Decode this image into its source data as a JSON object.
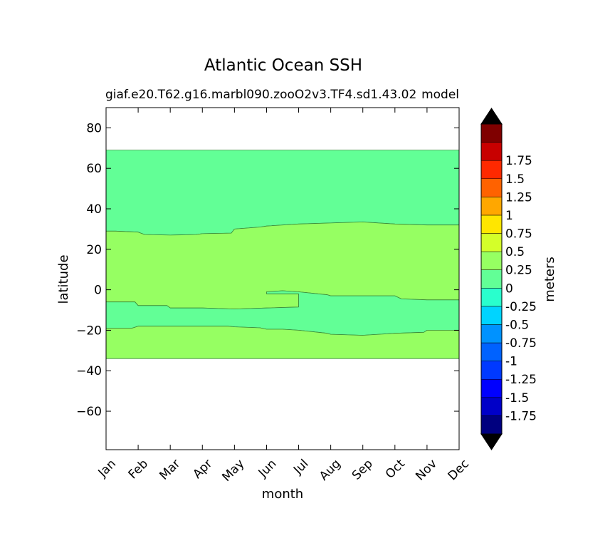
{
  "chart_data": {
    "type": "contourf",
    "title": "Atlantic Ocean SSH",
    "subtitle_left": "giaf.e20.T62.g16.marbl090.zooO2v3.TF4.sd1.43.02",
    "subtitle_right": "model",
    "xlabel": "month",
    "ylabel": "latitude",
    "x_ticks": [
      "Jan",
      "Feb",
      "Mar",
      "Apr",
      "May",
      "Jun",
      "Jul",
      "Aug",
      "Sep",
      "Oct",
      "Nov",
      "Dec"
    ],
    "y_ticks": [
      80,
      60,
      40,
      20,
      0,
      -20,
      -40,
      -60
    ],
    "xlim": [
      0,
      11
    ],
    "ylim": [
      -79,
      90
    ],
    "regions": [
      {
        "name": "north-band",
        "level": "-0.25 to 0",
        "color": "#62ff96",
        "boundary": [
          [
            0,
            69
          ],
          [
            11,
            69
          ],
          [
            11,
            32
          ],
          [
            10,
            32
          ],
          [
            9,
            32.5
          ],
          [
            8,
            33.5
          ],
          [
            7,
            33
          ],
          [
            6,
            32.5
          ],
          [
            5,
            31.5
          ],
          [
            4.8,
            31
          ],
          [
            4,
            30
          ],
          [
            3.9,
            28
          ],
          [
            3,
            27.7
          ],
          [
            2.8,
            27.3
          ],
          [
            2,
            27
          ],
          [
            1.2,
            27.3
          ],
          [
            1,
            28.5
          ],
          [
            0.3,
            29
          ],
          [
            0,
            29
          ]
        ]
      },
      {
        "name": "green-band",
        "level": "0 to 0.25",
        "color": "#96ff62",
        "boundary": [
          [
            0,
            29
          ],
          [
            0.3,
            29
          ],
          [
            1,
            28.5
          ],
          [
            1.2,
            27.3
          ],
          [
            2,
            27
          ],
          [
            2.8,
            27.3
          ],
          [
            3,
            27.7
          ],
          [
            3.9,
            28
          ],
          [
            4,
            30
          ],
          [
            4.8,
            31
          ],
          [
            5,
            31.5
          ],
          [
            6,
            32.5
          ],
          [
            7,
            33
          ],
          [
            8,
            33.5
          ],
          [
            9,
            32.5
          ],
          [
            10,
            32
          ],
          [
            11,
            32
          ],
          [
            11,
            -5
          ],
          [
            10,
            -5
          ],
          [
            9.2,
            -4.5
          ],
          [
            9,
            -3
          ],
          [
            7,
            -3
          ],
          [
            6.9,
            -2.5
          ],
          [
            6,
            -1
          ],
          [
            5.5,
            -0.5
          ],
          [
            5,
            -1
          ],
          [
            5,
            -2
          ],
          [
            6,
            -2
          ],
          [
            6,
            -8.5
          ],
          [
            5,
            -9
          ],
          [
            4,
            -9.5
          ],
          [
            3,
            -9
          ],
          [
            2,
            -9
          ],
          [
            1.9,
            -7.8
          ],
          [
            1,
            -7.8
          ],
          [
            0.9,
            -6
          ],
          [
            0,
            -6
          ]
        ]
      },
      {
        "name": "middle-band",
        "level": "-0.25 to 0",
        "color": "#62ff96",
        "boundary": [
          [
            0,
            -6
          ],
          [
            0.9,
            -6
          ],
          [
            1,
            -7.8
          ],
          [
            1.9,
            -7.8
          ],
          [
            2,
            -9
          ],
          [
            3,
            -9
          ],
          [
            4,
            -9.5
          ],
          [
            5,
            -9
          ],
          [
            6,
            -8.5
          ],
          [
            6,
            -2
          ],
          [
            5,
            -2
          ],
          [
            5,
            -1
          ],
          [
            5.5,
            -0.5
          ],
          [
            6,
            -1
          ],
          [
            6.9,
            -2.5
          ],
          [
            7,
            -3
          ],
          [
            9,
            -3
          ],
          [
            9.2,
            -4.5
          ],
          [
            10,
            -5
          ],
          [
            11,
            -5
          ],
          [
            11,
            -20
          ],
          [
            10,
            -20
          ],
          [
            9.9,
            -21
          ],
          [
            9,
            -21.5
          ],
          [
            8.5,
            -22
          ],
          [
            8,
            -22.5
          ],
          [
            7,
            -22
          ],
          [
            6.9,
            -21.5
          ],
          [
            6,
            -20
          ],
          [
            5.5,
            -19.5
          ],
          [
            5,
            -19.5
          ],
          [
            4.8,
            -18.8
          ],
          [
            4,
            -18.3
          ],
          [
            3.8,
            -18
          ],
          [
            3,
            -18
          ],
          [
            2,
            -18
          ],
          [
            1,
            -18
          ],
          [
            0.8,
            -19
          ],
          [
            0,
            -19
          ]
        ]
      },
      {
        "name": "south-band",
        "level": "0 to 0.25",
        "color": "#96ff62",
        "boundary": [
          [
            0,
            -19
          ],
          [
            0.8,
            -19
          ],
          [
            1,
            -18
          ],
          [
            2,
            -18
          ],
          [
            3,
            -18
          ],
          [
            3.8,
            -18
          ],
          [
            4,
            -18.3
          ],
          [
            4.8,
            -18.8
          ],
          [
            5,
            -19.5
          ],
          [
            5.5,
            -19.5
          ],
          [
            6,
            -20
          ],
          [
            6.9,
            -21.5
          ],
          [
            7,
            -22
          ],
          [
            8,
            -22.5
          ],
          [
            8.5,
            -22
          ],
          [
            9,
            -21.5
          ],
          [
            9.9,
            -21
          ],
          [
            10,
            -20
          ],
          [
            11,
            -20
          ],
          [
            11,
            -34
          ],
          [
            0,
            -34
          ]
        ]
      }
    ],
    "colorbar": {
      "label": "meters",
      "extend": "both",
      "under_color": "#000000",
      "over_color": "#000000",
      "levels": [
        {
          "color": "#00007f"
        },
        {
          "color": "#0000c8",
          "label": "-1.75"
        },
        {
          "color": "#0000ff",
          "label": "-1.5"
        },
        {
          "color": "#0039ff",
          "label": "-1.25"
        },
        {
          "color": "#0062ff",
          "label": "-1"
        },
        {
          "color": "#0092ff",
          "label": "-0.75"
        },
        {
          "color": "#00d4ff",
          "label": "-0.5"
        },
        {
          "color": "#29ffcd",
          "label": "-0.25"
        },
        {
          "color": "#62ff96",
          "label": "0"
        },
        {
          "color": "#96ff62",
          "label": "0.25"
        },
        {
          "color": "#d4ff29",
          "label": "0.5"
        },
        {
          "color": "#ffe600",
          "label": "0.75"
        },
        {
          "color": "#ffa700",
          "label": "1"
        },
        {
          "color": "#ff6200",
          "label": "1.25"
        },
        {
          "color": "#ff2900",
          "label": "1.5"
        },
        {
          "color": "#c80000",
          "label": "1.75"
        },
        {
          "color": "#7f0000"
        }
      ]
    }
  }
}
